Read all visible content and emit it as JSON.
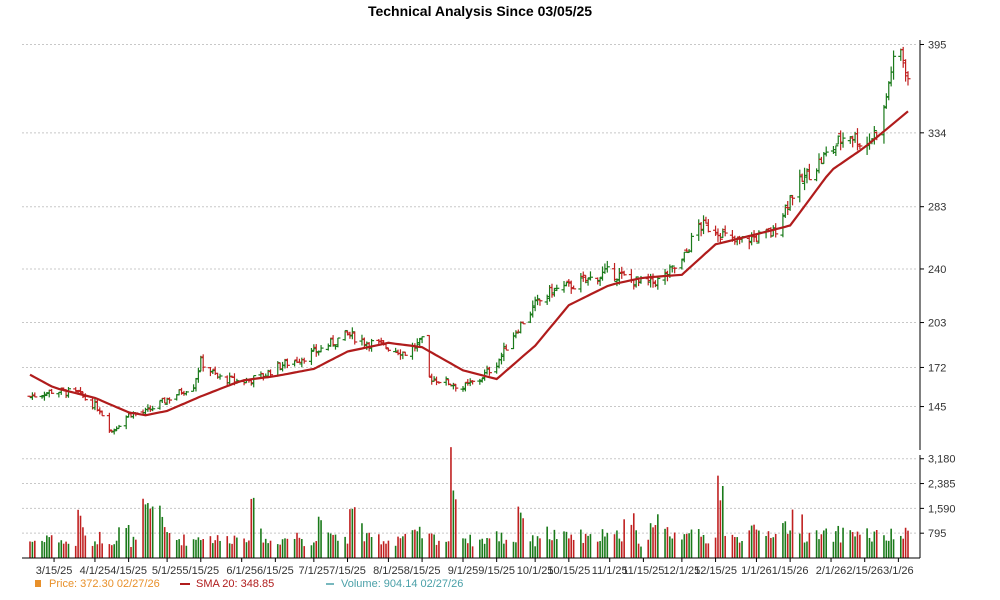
{
  "chart_data": {
    "type": "ohlc",
    "title": "Technical Analysis Since 03/05/25",
    "y_ticks": [
      "395",
      "334",
      "283",
      "240",
      "203",
      "172",
      "145"
    ],
    "y_tick_values": [
      395,
      334,
      283,
      240,
      203,
      172,
      145
    ],
    "vol_ticks": [
      "3,180",
      "2,385",
      "1,590",
      "795"
    ],
    "vol_tick_values": [
      3180,
      2385,
      1590,
      795
    ],
    "x_ticks": [
      "3/15/25",
      "4/1/25",
      "4/15/25",
      "5/1/25",
      "5/15/25",
      "6/1/25",
      "6/15/25",
      "7/1/25",
      "7/15/25",
      "8/1/25",
      "8/15/25",
      "9/1/25",
      "9/15/25",
      "10/1/25",
      "10/15/25",
      "11/1/25",
      "11/15/25",
      "12/1/25",
      "12/15/25",
      "1/1/26",
      "1/15/26",
      "2/1/26",
      "2/15/26",
      "3/1/26"
    ],
    "price_keypoints": [
      [
        "3/5/25",
        152
      ],
      [
        "3/15/25",
        156
      ],
      [
        "3/25/25",
        154
      ],
      [
        "4/3/25",
        143
      ],
      [
        "4/8/25",
        128
      ],
      [
        "4/15/25",
        140
      ],
      [
        "4/22/25",
        141
      ],
      [
        "5/1/25",
        150
      ],
      [
        "5/12/25",
        160
      ],
      [
        "5/15/25",
        176
      ],
      [
        "5/22/25",
        165
      ],
      [
        "6/1/25",
        162
      ],
      [
        "6/10/25",
        166
      ],
      [
        "6/15/25",
        172
      ],
      [
        "6/25/25",
        178
      ],
      [
        "7/1/25",
        182
      ],
      [
        "7/15/25",
        195
      ],
      [
        "7/22/25",
        190
      ],
      [
        "8/1/25",
        186
      ],
      [
        "8/8/25",
        182
      ],
      [
        "8/15/25",
        190
      ],
      [
        "8/18/25",
        165
      ],
      [
        "8/25/25",
        162
      ],
      [
        "9/1/25",
        158
      ],
      [
        "9/8/25",
        164
      ],
      [
        "9/15/25",
        175
      ],
      [
        "9/22/25",
        195
      ],
      [
        "10/1/25",
        215
      ],
      [
        "10/8/25",
        225
      ],
      [
        "10/15/25",
        228
      ],
      [
        "10/22/25",
        232
      ],
      [
        "11/1/25",
        238
      ],
      [
        "11/10/25",
        232
      ],
      [
        "11/15/25",
        230
      ],
      [
        "11/22/25",
        232
      ],
      [
        "12/1/25",
        245
      ],
      [
        "12/8/25",
        270
      ],
      [
        "12/15/25",
        268
      ],
      [
        "12/22/25",
        258
      ],
      [
        "1/1/26",
        262
      ],
      [
        "1/8/26",
        265
      ],
      [
        "1/15/26",
        290
      ],
      [
        "1/22/26",
        305
      ],
      [
        "2/1/26",
        322
      ],
      [
        "2/8/26",
        335
      ],
      [
        "2/15/26",
        325
      ],
      [
        "2/22/26",
        340
      ],
      [
        "2/26/26",
        378
      ],
      [
        "3/2/26",
        390
      ],
      [
        "3/5/26",
        372
      ]
    ],
    "sma_keypoints": [
      [
        "3/5/25",
        167
      ],
      [
        "3/15/25",
        158
      ],
      [
        "4/1/25",
        151
      ],
      [
        "4/15/25",
        141
      ],
      [
        "4/22/25",
        139
      ],
      [
        "5/1/25",
        142
      ],
      [
        "5/15/25",
        152
      ],
      [
        "6/1/25",
        163
      ],
      [
        "6/15/25",
        166
      ],
      [
        "7/1/25",
        171
      ],
      [
        "7/15/25",
        183
      ],
      [
        "8/1/25",
        189
      ],
      [
        "8/15/25",
        186
      ],
      [
        "9/1/25",
        170
      ],
      [
        "9/15/25",
        164
      ],
      [
        "10/1/25",
        187
      ],
      [
        "10/15/25",
        215
      ],
      [
        "11/1/25",
        229
      ],
      [
        "11/15/25",
        234
      ],
      [
        "12/1/25",
        236
      ],
      [
        "12/15/25",
        257
      ],
      [
        "1/1/26",
        264
      ],
      [
        "1/15/26",
        270
      ],
      [
        "2/1/26",
        308
      ],
      [
        "2/15/26",
        324
      ],
      [
        "3/5/26",
        348.85
      ]
    ],
    "volume_profile": [
      650,
      820,
      720,
      560,
      1450,
      640,
      780,
      700,
      980,
      620,
      1680,
      2020,
      880,
      720,
      690,
      850,
      760,
      700,
      780,
      920,
      1680,
      640,
      700,
      760,
      820,
      680,
      1480,
      700,
      760,
      1620,
      710,
      760,
      660,
      800,
      830,
      880,
      760,
      680,
      3180,
      780,
      660,
      720,
      820,
      700,
      1880,
      640,
      920,
      860,
      760,
      820,
      700,
      940,
      760,
      880,
      1380,
      660,
      980,
      1480,
      900,
      1200,
      820,
      760,
      2780,
      720,
      880,
      940,
      960,
      1000,
      1200,
      1380,
      900,
      800,
      840,
      900,
      1040,
      920,
      820,
      780,
      820,
      860
    ],
    "legend": [
      {
        "label": "Price: 372.30  02/27/26",
        "color": "#e8902a"
      },
      {
        "label": "SMA 20: 348.85",
        "color": "#b01c1c"
      },
      {
        "label": "Volume: 904.14  02/27/26",
        "color": "#4aa0a8"
      }
    ],
    "ylim": [
      115,
      405
    ],
    "vol_ylim": [
      0,
      3300
    ],
    "colors": {
      "up": "#1a7a1a",
      "down": "#c02020",
      "sma": "#b01c1c"
    }
  }
}
